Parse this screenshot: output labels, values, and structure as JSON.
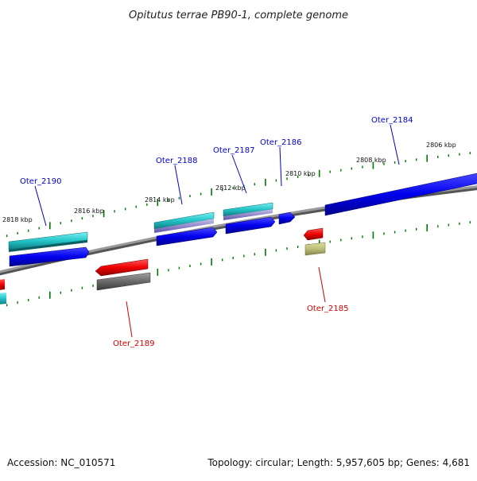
{
  "title": "Opitutus terrae PB90-1, complete genome",
  "footer": {
    "accession": "Accession: NC_010571",
    "summary": "Topology: circular; Length: 5,957,605 bp; Genes: 4,681"
  },
  "scale": [
    "2818 kbp",
    "2816 kbp",
    "2814 kbp",
    "2812 kbp",
    "2810 kbp",
    "2808 kbp",
    "2806 kbp"
  ],
  "genes_forward": [
    "Oter_2190",
    "Oter_2188",
    "Oter_2187",
    "Oter_2186",
    "Oter_2184"
  ],
  "genes_reverse": [
    "Oter_2189",
    "Oter_2185"
  ],
  "colors": {
    "forward_label": "#0000cc",
    "reverse_label": "#cc0000",
    "cds_forward": "#0000ee",
    "cds_reverse": "#ee0000",
    "gene_teal": "#22c4c8",
    "rna_grey": "#707070",
    "misc_olive": "#bdbd7a",
    "tick": "#007700",
    "backbone": "#8a8a8a"
  }
}
